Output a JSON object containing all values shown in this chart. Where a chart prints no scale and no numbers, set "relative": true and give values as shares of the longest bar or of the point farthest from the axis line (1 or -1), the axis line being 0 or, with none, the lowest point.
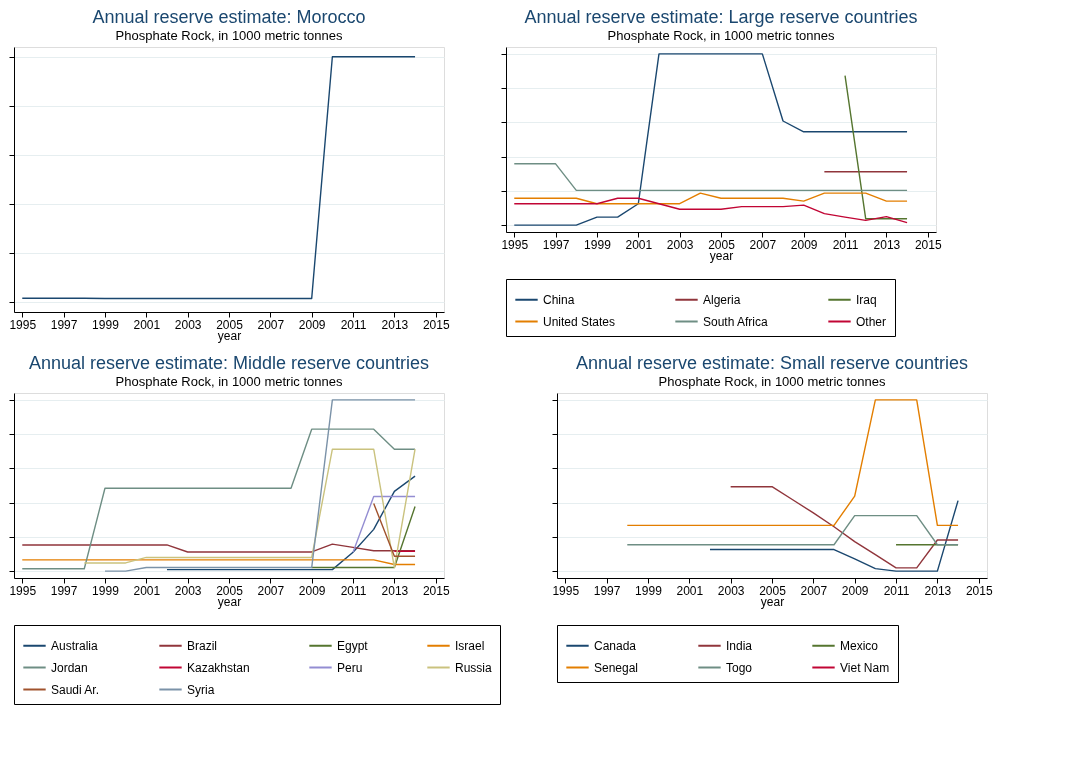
{
  "chart_data": [
    {
      "type": "line",
      "title": "Annual reserve estimate: Morocco",
      "subtitle": "Phosphate Rock, in 1000 metric tonnes",
      "xlabel": "year",
      "relative": true,
      "xlim": [
        1994.6,
        2015.4
      ],
      "xticks": [
        1995,
        1997,
        1999,
        2001,
        2003,
        2005,
        2007,
        2009,
        2011,
        2013,
        2015
      ],
      "grid": "y",
      "legend": false,
      "tick_labels": "x",
      "series": [
        {
          "color": "#1a476f",
          "x": [
            1995,
            1996,
            1997,
            1998,
            1999,
            2000,
            2001,
            2002,
            2003,
            2004,
            2005,
            2006,
            2007,
            2008,
            2009,
            2010,
            2011,
            2012,
            2013,
            2014
          ],
          "values": [
            0.016,
            0.016,
            0.016,
            0.016,
            0.015,
            0.015,
            0.015,
            0.015,
            0.015,
            0.015,
            0.015,
            0.015,
            0.015,
            0.015,
            0.015,
            1,
            1,
            1,
            1,
            1
          ]
        }
      ]
    },
    {
      "type": "line",
      "title": "Annual reserve estimate: Large reserve countries",
      "subtitle": "Phosphate Rock, in 1000 metric tonnes",
      "xlabel": "year",
      "relative": true,
      "xlim": [
        1994.6,
        2015.4
      ],
      "xticks": [
        1995,
        1997,
        1999,
        2001,
        2003,
        2005,
        2007,
        2009,
        2011,
        2013,
        2015
      ],
      "grid": "y",
      "legend": "bottom",
      "tick_labels": "x",
      "series": [
        {
          "name": "China",
          "color": "#1a476f",
          "x": [
            1995,
            1996,
            1997,
            1998,
            1999,
            2000,
            2001,
            2002,
            2003,
            2004,
            2005,
            2006,
            2007,
            2008,
            2009,
            2010,
            2011,
            2012,
            2013,
            2014
          ],
          "values": [
            0,
            0,
            0,
            0,
            0.047,
            0.047,
            0.125,
            1,
            1,
            1,
            1,
            1,
            1,
            0.608,
            0.545,
            0.545,
            0.545,
            0.545,
            0.545,
            0.545
          ]
        },
        {
          "name": "Algeria",
          "color": "#90353b",
          "x": [
            2010,
            2011,
            2012,
            2013,
            2014
          ],
          "values": [
            0.312,
            0.312,
            0.312,
            0.312,
            0.312
          ]
        },
        {
          "name": "Iraq",
          "color": "#55752f",
          "x": [
            2011,
            2012,
            2013,
            2014
          ],
          "values": [
            0.873,
            0.037,
            0.037,
            0.037
          ]
        },
        {
          "name": "United States",
          "color": "#e37e00",
          "x": [
            1995,
            1996,
            1997,
            1998,
            1999,
            2000,
            2001,
            2002,
            2003,
            2004,
            2005,
            2006,
            2007,
            2008,
            2009,
            2010,
            2011,
            2012,
            2013,
            2014
          ],
          "values": [
            0.157,
            0.157,
            0.157,
            0.157,
            0.125,
            0.125,
            0.125,
            0.125,
            0.125,
            0.187,
            0.157,
            0.157,
            0.157,
            0.157,
            0.14,
            0.187,
            0.187,
            0.187,
            0.14,
            0.14
          ]
        },
        {
          "name": "South Africa",
          "color": "#6e8e84",
          "x": [
            1995,
            1996,
            1997,
            1998,
            1999,
            2000,
            2001,
            2002,
            2003,
            2004,
            2005,
            2006,
            2007,
            2008,
            2009,
            2010,
            2011,
            2012,
            2013,
            2014
          ],
          "values": [
            0.358,
            0.358,
            0.358,
            0.203,
            0.203,
            0.203,
            0.203,
            0.203,
            0.203,
            0.203,
            0.203,
            0.203,
            0.203,
            0.203,
            0.203,
            0.203,
            0.203,
            0.203,
            0.203,
            0.203
          ]
        },
        {
          "name": "Other",
          "color": "#c10534",
          "x": [
            1995,
            1996,
            1997,
            1998,
            1999,
            2000,
            2001,
            2002,
            2003,
            2004,
            2005,
            2006,
            2007,
            2008,
            2009,
            2010,
            2011,
            2012,
            2013,
            2014
          ],
          "values": [
            0.125,
            0.125,
            0.125,
            0.125,
            0.125,
            0.157,
            0.157,
            0.125,
            0.093,
            0.093,
            0.093,
            0.108,
            0.108,
            0.108,
            0.117,
            0.067,
            0.047,
            0.028,
            0.05,
            0.015
          ]
        }
      ]
    },
    {
      "type": "line",
      "title": "Annual reserve estimate: Middle reserve countries",
      "subtitle": "Phosphate Rock, in 1000 metric tonnes",
      "xlabel": "year",
      "relative": true,
      "xlim": [
        1994.6,
        2015.4
      ],
      "xticks": [
        1995,
        1997,
        1999,
        2001,
        2003,
        2005,
        2007,
        2009,
        2011,
        2013,
        2015
      ],
      "grid": "y",
      "legend": "bottom",
      "tick_labels": "x",
      "series": [
        {
          "name": "Australia",
          "color": "#1a476f",
          "x": [
            2002,
            2003,
            2004,
            2005,
            2006,
            2007,
            2008,
            2009,
            2010,
            2011,
            2012,
            2013,
            2014
          ],
          "values": [
            0.009,
            0.009,
            0.009,
            0.009,
            0.009,
            0.009,
            0.009,
            0.009,
            0.009,
            0.11,
            0.244,
            0.466,
            0.555
          ]
        },
        {
          "name": "Brazil",
          "color": "#90353b",
          "x": [
            1995,
            1996,
            1997,
            1998,
            1999,
            2000,
            2001,
            2002,
            2003,
            2004,
            2005,
            2006,
            2007,
            2008,
            2009,
            2010,
            2011,
            2012,
            2013,
            2014
          ],
          "values": [
            0.153,
            0.153,
            0.153,
            0.153,
            0.153,
            0.153,
            0.153,
            0.153,
            0.112,
            0.112,
            0.112,
            0.112,
            0.112,
            0.112,
            0.112,
            0.158,
            0.139,
            0.119,
            0.119,
            0.119
          ]
        },
        {
          "name": "Egypt",
          "color": "#55752f",
          "x": [
            2009,
            2010,
            2011,
            2012,
            2013,
            2014
          ],
          "values": [
            0.021,
            0.021,
            0.021,
            0.021,
            0.021,
            0.377
          ]
        },
        {
          "name": "Israel",
          "color": "#e37e00",
          "x": [
            1995,
            1996,
            1997,
            1998,
            1999,
            2000,
            2001,
            2002,
            2003,
            2004,
            2005,
            2006,
            2007,
            2008,
            2009,
            2010,
            2011,
            2012,
            2013,
            2014
          ],
          "values": [
            0.066,
            0.066,
            0.066,
            0.066,
            0.066,
            0.066,
            0.066,
            0.066,
            0.066,
            0.066,
            0.066,
            0.066,
            0.066,
            0.066,
            0.066,
            0.066,
            0.066,
            0.066,
            0.039,
            0.039
          ]
        },
        {
          "name": "Jordan",
          "color": "#6e8e84",
          "x": [
            1995,
            1996,
            1997,
            1998,
            1999,
            2000,
            2001,
            2002,
            2003,
            2004,
            2005,
            2006,
            2007,
            2008,
            2009,
            2010,
            2011,
            2012,
            2013,
            2014
          ],
          "values": [
            0.014,
            0.014,
            0.014,
            0.014,
            0.484,
            0.484,
            0.484,
            0.484,
            0.484,
            0.484,
            0.484,
            0.484,
            0.484,
            0.484,
            0.829,
            0.829,
            0.829,
            0.829,
            0.712,
            0.712
          ]
        },
        {
          "name": "Kazakhstan",
          "color": "#c10534",
          "x": [
            2013,
            2014
          ],
          "values": [
            0.116,
            0.116
          ]
        },
        {
          "name": "Peru",
          "color": "#938dd2",
          "x": [
            2011,
            2012,
            2013,
            2014
          ],
          "values": [
            0.11,
            0.436,
            0.436,
            0.436
          ]
        },
        {
          "name": "Russia",
          "color": "#cac27e",
          "x": [
            1998,
            1999,
            2000,
            2001,
            2002,
            2003,
            2004,
            2005,
            2006,
            2007,
            2008,
            2009,
            2010,
            2011,
            2012,
            2013,
            2014
          ],
          "values": [
            0.048,
            0.048,
            0.048,
            0.08,
            0.08,
            0.08,
            0.08,
            0.08,
            0.08,
            0.08,
            0.08,
            0.08,
            0.712,
            0.712,
            0.712,
            0.021,
            0.712
          ]
        },
        {
          "name": "Saudi Ar.",
          "color": "#a0522d",
          "x": [
            2012,
            2013,
            2014
          ],
          "values": [
            0.395,
            0.087,
            0.087
          ]
        },
        {
          "name": "Syria",
          "color": "#7b92a8",
          "x": [
            1999,
            2000,
            2001,
            2002,
            2003,
            2004,
            2005,
            2006,
            2007,
            2008,
            2009,
            2010,
            2011,
            2012,
            2013,
            2014
          ],
          "values": [
            0,
            0,
            0.021,
            0.021,
            0.021,
            0.021,
            0.021,
            0.021,
            0.021,
            0.021,
            0.021,
            1,
            1,
            1,
            1,
            1
          ]
        }
      ]
    },
    {
      "type": "line",
      "title": "Annual reserve estimate: Small reserve countries",
      "subtitle": "Phosphate Rock, in 1000 metric tonnes",
      "xlabel": "year",
      "relative": true,
      "xlim": [
        1994.6,
        2015.4
      ],
      "xticks": [
        1995,
        1997,
        1999,
        2001,
        2003,
        2005,
        2007,
        2009,
        2011,
        2013,
        2015
      ],
      "grid": "y",
      "legend": "bottom",
      "tick_labels": "x",
      "series": [
        {
          "name": "Canada",
          "color": "#1a476f",
          "x": [
            2002,
            2003,
            2004,
            2005,
            2006,
            2007,
            2008,
            2009,
            2010,
            2011,
            2012,
            2013,
            2014
          ],
          "values": [
            0.126,
            0.126,
            0.126,
            0.126,
            0.126,
            0.126,
            0.126,
            0.071,
            0.015,
            0,
            0,
            0,
            0.412
          ]
        },
        {
          "name": "India",
          "color": "#90353b",
          "x": [
            2003,
            2004,
            2005,
            2006,
            2007,
            2008,
            2009,
            2010,
            2011,
            2012,
            2013,
            2014
          ],
          "values": [
            0.493,
            0.493,
            0.493,
            0.417,
            0.34,
            0.259,
            0.172,
            0.096,
            0.019,
            0.019,
            0.182,
            0.182
          ]
        },
        {
          "name": "Mexico",
          "color": "#55752f",
          "x": [
            2011,
            2012,
            2013,
            2014
          ],
          "values": [
            0.154,
            0.154,
            0.154,
            0.154
          ]
        },
        {
          "name": "Senegal",
          "color": "#e37e00",
          "x": [
            1998,
            1999,
            2000,
            2001,
            2002,
            2003,
            2004,
            2005,
            2006,
            2007,
            2008,
            2009,
            2010,
            2011,
            2012,
            2013,
            2014
          ],
          "values": [
            0.267,
            0.267,
            0.267,
            0.267,
            0.267,
            0.267,
            0.267,
            0.267,
            0.267,
            0.267,
            0.267,
            0.438,
            1,
            1,
            1,
            0.267,
            0.267
          ]
        },
        {
          "name": "Togo",
          "color": "#6e8e84",
          "x": [
            1998,
            1999,
            2000,
            2001,
            2002,
            2003,
            2004,
            2005,
            2006,
            2007,
            2008,
            2009,
            2010,
            2011,
            2012,
            2013,
            2014
          ],
          "values": [
            0.154,
            0.154,
            0.154,
            0.154,
            0.154,
            0.154,
            0.154,
            0.154,
            0.154,
            0.154,
            0.154,
            0.324,
            0.324,
            0.324,
            0.324,
            0.154,
            0.154
          ]
        },
        {
          "name": "Viet Nam",
          "color": "#c10534"
        }
      ]
    }
  ]
}
